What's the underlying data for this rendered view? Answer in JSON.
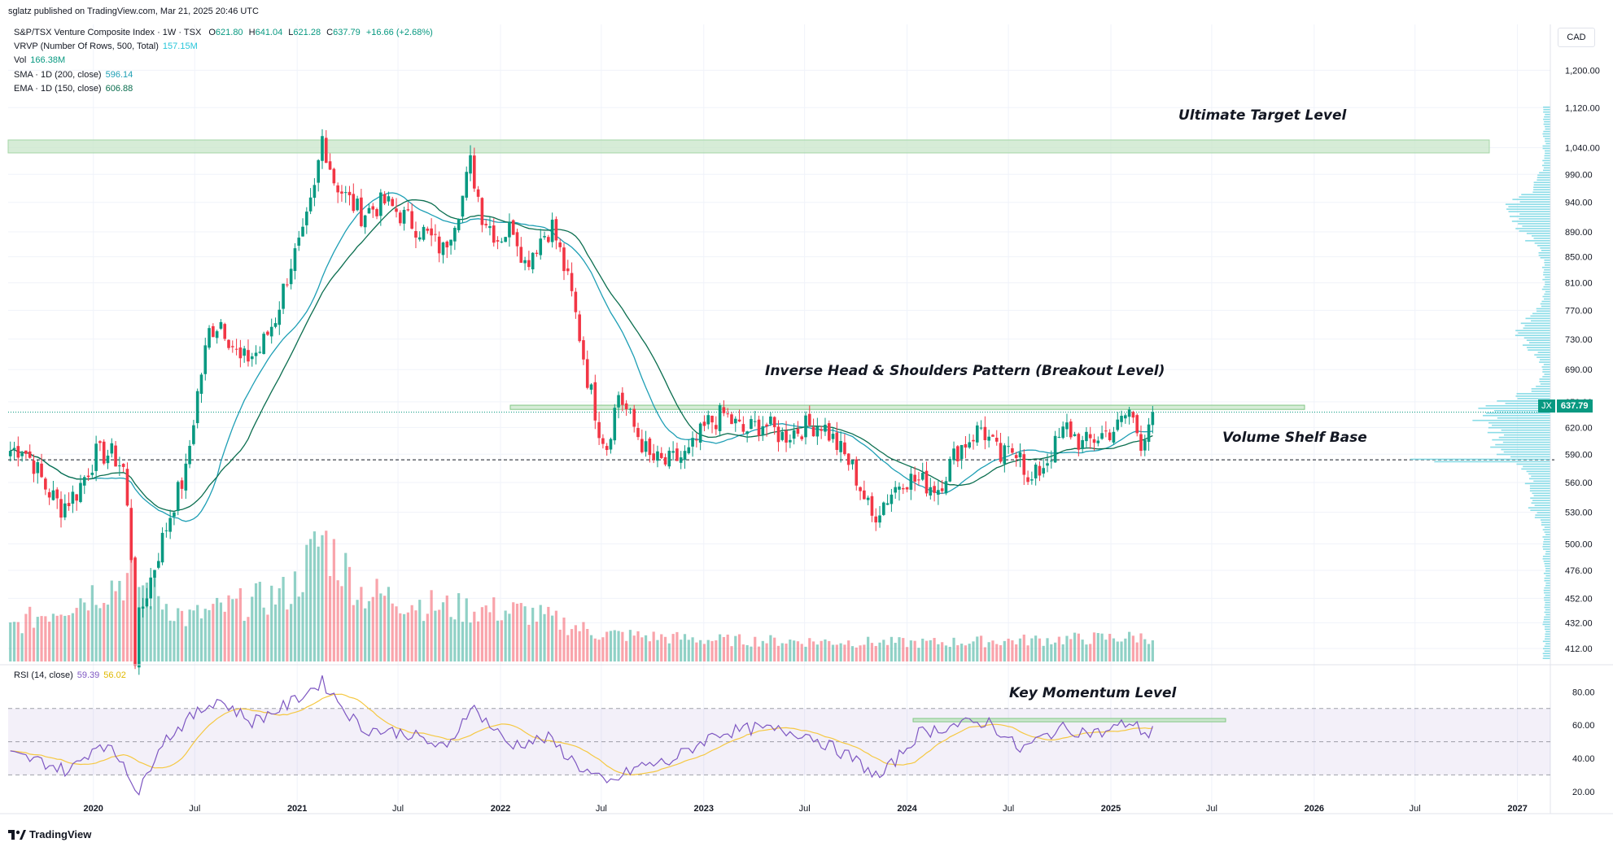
{
  "header": {
    "published": "sglatz published on TradingView.com, Mar 21, 2025 20:46 UTC"
  },
  "legend": {
    "main": {
      "title": "S&P/TSX Venture Composite Index · 1W · TSX",
      "o_label": "O",
      "o": "621.80",
      "h_label": "H",
      "h": "641.04",
      "l_label": "L",
      "l": "621.28",
      "c_label": "C",
      "c": "637.79",
      "change": "+16.66 (+2.68%)"
    },
    "vrvp": {
      "label": "VRVP (Number Of Rows, 500, Total)",
      "value": "157.15M"
    },
    "vol": {
      "label": "Vol",
      "value": "166.38M"
    },
    "sma": {
      "label": "SMA · 1D (200, close)",
      "value": "596.14"
    },
    "ema": {
      "label": "EMA · 1D (150, close)",
      "value": "606.88"
    },
    "rsi": {
      "label": "RSI (14, close)",
      "value": "59.39",
      "ma": "56.02"
    }
  },
  "currency": "CAD",
  "price_tag": {
    "symbol": "JX",
    "price": "637.79"
  },
  "annotations": {
    "target": "Ultimate Target Level",
    "ihs": "Inverse Head & Shoulders Pattern (Breakout Level)",
    "shelf": "Volume Shelf Base",
    "momentum": "Key Momentum Level"
  },
  "brand": "TradingView",
  "colors": {
    "up": "#089981",
    "down": "#f23645",
    "sma": "#1e9fb5",
    "ema": "#0b6e4f",
    "rsi": "#7e57c2",
    "rsi_ma": "#f5c842",
    "vrvp": "#74d6e3",
    "zone": "#c8e6c9"
  },
  "chart_data": [
    {
      "type": "candlestick",
      "title": "S&P/TSX Venture Composite Index",
      "interval": "1W",
      "x_range": [
        "2019-08",
        "2027-03"
      ],
      "ylim": [
        395,
        1230
      ],
      "y_scale": "log",
      "ytick_labels": [
        "1,200.00",
        "1,120.00",
        "1,040.00",
        "990.00",
        "940.00",
        "890.00",
        "850.00",
        "810.00",
        "770.00",
        "730.00",
        "690.00",
        "650.00",
        "620.00",
        "590.00",
        "560.00",
        "530.00",
        "500.00",
        "476.00",
        "452.00",
        "432.00",
        "412.00"
      ],
      "xtick_labels": [
        "2020",
        "Jul",
        "2021",
        "Jul",
        "2022",
        "Jul",
        "2023",
        "Jul",
        "2024",
        "Jul",
        "2025",
        "Jul",
        "2026",
        "Jul",
        "2027"
      ],
      "anchors": [
        [
          "2019-08-05",
          594
        ],
        [
          "2019-08-26",
          598
        ],
        [
          "2019-09-16",
          580
        ],
        [
          "2019-10-07",
          555
        ],
        [
          "2019-11-04",
          535
        ],
        [
          "2019-12-02",
          550
        ],
        [
          "2020-01-06",
          590
        ],
        [
          "2020-02-03",
          590
        ],
        [
          "2020-02-24",
          575
        ],
        [
          "2020-03-09",
          490
        ],
        [
          "2020-03-16",
          405
        ],
        [
          "2020-03-23",
          435
        ],
        [
          "2020-04-20",
          480
        ],
        [
          "2020-05-25",
          540
        ],
        [
          "2020-06-15",
          570
        ],
        [
          "2020-07-06",
          660
        ],
        [
          "2020-07-27",
          740
        ],
        [
          "2020-08-17",
          755
        ],
        [
          "2020-09-21",
          700
        ],
        [
          "2020-10-26",
          715
        ],
        [
          "2020-11-23",
          760
        ],
        [
          "2020-12-21",
          840
        ],
        [
          "2021-01-11",
          880
        ],
        [
          "2021-02-01",
          960
        ],
        [
          "2021-02-15",
          1060
        ],
        [
          "2021-03-08",
          980
        ],
        [
          "2021-03-29",
          950
        ],
        [
          "2021-04-26",
          920
        ],
        [
          "2021-06-07",
          940
        ],
        [
          "2021-07-05",
          920
        ],
        [
          "2021-08-16",
          890
        ],
        [
          "2021-09-20",
          860
        ],
        [
          "2021-10-25",
          950
        ],
        [
          "2021-11-08",
          1010
        ],
        [
          "2021-11-29",
          920
        ],
        [
          "2021-12-27",
          880
        ],
        [
          "2022-01-24",
          900
        ],
        [
          "2022-02-14",
          840
        ],
        [
          "2022-03-14",
          880
        ],
        [
          "2022-04-04",
          900
        ],
        [
          "2022-05-09",
          790
        ],
        [
          "2022-06-06",
          680
        ],
        [
          "2022-06-27",
          620
        ],
        [
          "2022-07-11",
          600
        ],
        [
          "2022-08-01",
          660
        ],
        [
          "2022-08-29",
          620
        ],
        [
          "2022-09-26",
          585
        ],
        [
          "2022-10-24",
          580
        ],
        [
          "2022-12-05",
          590
        ],
        [
          "2023-01-09",
          625
        ],
        [
          "2023-02-06",
          635
        ],
        [
          "2023-03-13",
          615
        ],
        [
          "2023-04-17",
          625
        ],
        [
          "2023-05-22",
          610
        ],
        [
          "2023-06-26",
          620
        ],
        [
          "2023-07-31",
          625
        ],
        [
          "2023-08-28",
          600
        ],
        [
          "2023-09-25",
          575
        ],
        [
          "2023-10-30",
          525
        ],
        [
          "2023-11-20",
          540
        ],
        [
          "2023-12-25",
          565
        ],
        [
          "2024-01-29",
          560
        ],
        [
          "2024-02-26",
          555
        ],
        [
          "2024-04-01",
          595
        ],
        [
          "2024-05-13",
          620
        ],
        [
          "2024-06-17",
          585
        ],
        [
          "2024-07-22",
          600
        ],
        [
          "2024-08-05",
          555
        ],
        [
          "2024-09-09",
          585
        ],
        [
          "2024-10-14",
          620
        ],
        [
          "2024-11-11",
          600
        ],
        [
          "2024-12-16",
          612
        ],
        [
          "2025-01-13",
          620
        ],
        [
          "2025-02-03",
          640
        ],
        [
          "2025-02-24",
          605
        ],
        [
          "2025-03-17",
          637.79
        ]
      ]
    },
    {
      "type": "bar",
      "title": "Vol",
      "note": "weekly volume, relative scale",
      "anchors": [
        [
          "2019-08-05",
          0.22
        ],
        [
          "2020-03-09",
          0.55
        ],
        [
          "2020-06-15",
          0.28
        ],
        [
          "2020-12-21",
          0.45
        ],
        [
          "2021-02-15",
          0.8
        ],
        [
          "2021-04-26",
          0.45
        ],
        [
          "2021-09-20",
          0.35
        ],
        [
          "2022-02-14",
          0.32
        ],
        [
          "2022-06-27",
          0.18
        ],
        [
          "2023-01-09",
          0.14
        ],
        [
          "2024-01-29",
          0.12
        ],
        [
          "2025-03-17",
          0.16
        ]
      ]
    },
    {
      "type": "line",
      "title": "RSI (14, close)",
      "ylim": [
        14,
        90
      ],
      "ytick_labels": [
        "80.00",
        "60.00",
        "40.00",
        "20.00"
      ],
      "bands": {
        "upper": 70,
        "middle": 50,
        "lower": 30
      },
      "anchors": [
        [
          "2019-08-05",
          42
        ],
        [
          "2019-09-30",
          38
        ],
        [
          "2019-11-18",
          32
        ],
        [
          "2020-01-13",
          50
        ],
        [
          "2020-02-24",
          38
        ],
        [
          "2020-03-23",
          18
        ],
        [
          "2020-04-27",
          48
        ],
        [
          "2020-06-15",
          62
        ],
        [
          "2020-08-10",
          76
        ],
        [
          "2020-10-12",
          62
        ],
        [
          "2020-12-14",
          72
        ],
        [
          "2021-02-15",
          86
        ],
        [
          "2021-04-26",
          58
        ],
        [
          "2021-07-19",
          55
        ],
        [
          "2021-09-27",
          45
        ],
        [
          "2021-11-08",
          72
        ],
        [
          "2022-01-17",
          48
        ],
        [
          "2022-03-28",
          52
        ],
        [
          "2022-05-23",
          35
        ],
        [
          "2022-07-11",
          24
        ],
        [
          "2022-09-05",
          35
        ],
        [
          "2022-10-31",
          38
        ],
        [
          "2023-01-23",
          55
        ],
        [
          "2023-04-03",
          58
        ],
        [
          "2023-07-03",
          55
        ],
        [
          "2023-09-25",
          40
        ],
        [
          "2023-11-13",
          28
        ],
        [
          "2024-01-22",
          55
        ],
        [
          "2024-03-25",
          60
        ],
        [
          "2024-05-27",
          62
        ],
        [
          "2024-07-22",
          45
        ],
        [
          "2024-09-30",
          58
        ],
        [
          "2024-12-16",
          55
        ],
        [
          "2025-02-03",
          62
        ],
        [
          "2025-03-10",
          54
        ],
        [
          "2025-03-17",
          59.39
        ]
      ]
    }
  ]
}
